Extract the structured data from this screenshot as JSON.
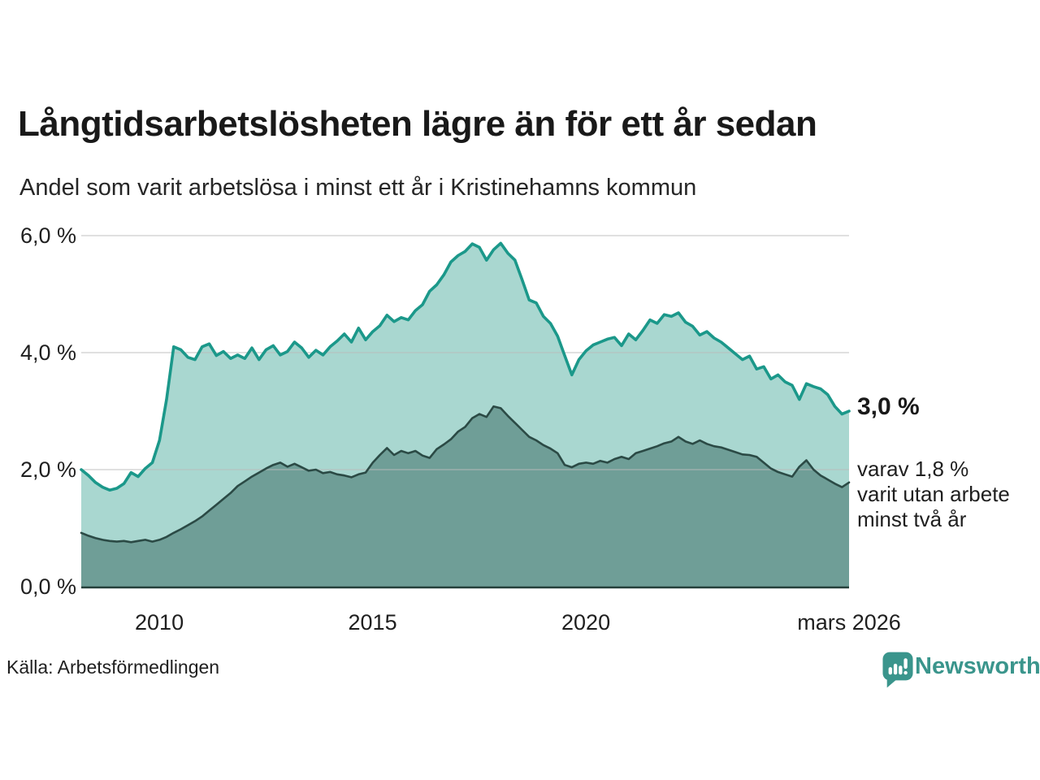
{
  "header": {
    "title": "Långtidsarbetslösheten lägre än för ett år sedan",
    "subtitle": "Andel som varit arbetslösa i minst ett år i Kristinehamns kommun"
  },
  "footer": {
    "source": "Källa: Arbetsförmedlingen",
    "brand": "Newsworthy"
  },
  "colors": {
    "series1_stroke": "#1b988a",
    "series1_fill": "#a9d7d0",
    "series2_stroke": "#2b4a45",
    "series2_fill": "#6f9e97",
    "grid": "#bdbdbd",
    "baseline": "#25403b",
    "brand_teal": "#3a958c",
    "text_dark": "#1f1f1f"
  },
  "chart_data": {
    "type": "area",
    "title": "Långtidsarbetslösheten lägre än för ett år sedan",
    "subtitle": "Andel som varit arbetslösa i minst ett år i Kristinehamns kommun",
    "x_start": 2008.17,
    "x_end": 2026.17,
    "x_unit": "year (uniform spacing, Feb 2008 – Mar 2026)",
    "ylim": [
      0,
      6
    ],
    "grid": "horizontal",
    "legend": "none",
    "y_ticks": [
      {
        "value": 6,
        "label": "6,0 %"
      },
      {
        "value": 4,
        "label": "4,0 %"
      },
      {
        "value": 2,
        "label": "2,0 %"
      },
      {
        "value": 0,
        "label": "0,0 %"
      }
    ],
    "x_ticks": [
      {
        "value": 2010,
        "label": "2010"
      },
      {
        "value": 2015,
        "label": "2015"
      },
      {
        "value": 2020,
        "label": "2020"
      },
      {
        "value": 2026.17,
        "label": "mars 2026"
      }
    ],
    "series": [
      {
        "name": "Arbetslösa minst ett år",
        "values": [
          2.0,
          1.9,
          1.78,
          1.7,
          1.65,
          1.68,
          1.76,
          1.95,
          1.88,
          2.02,
          2.12,
          2.5,
          3.2,
          4.1,
          4.05,
          3.92,
          3.88,
          4.1,
          4.15,
          3.95,
          4.02,
          3.9,
          3.96,
          3.9,
          4.08,
          3.88,
          4.05,
          4.12,
          3.96,
          4.02,
          4.18,
          4.08,
          3.92,
          4.04,
          3.96,
          4.1,
          4.2,
          4.32,
          4.18,
          4.42,
          4.22,
          4.36,
          4.46,
          4.64,
          4.53,
          4.6,
          4.56,
          4.72,
          4.82,
          5.05,
          5.16,
          5.33,
          5.55,
          5.66,
          5.73,
          5.86,
          5.8,
          5.58,
          5.76,
          5.87,
          5.7,
          5.58,
          5.25,
          4.9,
          4.85,
          4.62,
          4.5,
          4.28,
          3.95,
          3.62,
          3.88,
          4.03,
          4.13,
          4.18,
          4.23,
          4.26,
          4.12,
          4.32,
          4.22,
          4.38,
          4.56,
          4.5,
          4.65,
          4.62,
          4.68,
          4.52,
          4.45,
          4.3,
          4.36,
          4.25,
          4.18,
          4.08,
          3.98,
          3.88,
          3.94,
          3.72,
          3.76,
          3.55,
          3.62,
          3.5,
          3.44,
          3.2,
          3.47,
          3.42,
          3.38,
          3.28,
          3.08,
          2.95,
          3.0
        ]
      },
      {
        "name": "Varav utan arbete minst två år",
        "values": [
          0.92,
          0.87,
          0.83,
          0.8,
          0.78,
          0.77,
          0.78,
          0.76,
          0.78,
          0.8,
          0.77,
          0.8,
          0.85,
          0.92,
          0.98,
          1.05,
          1.12,
          1.2,
          1.3,
          1.4,
          1.5,
          1.6,
          1.72,
          1.8,
          1.88,
          1.95,
          2.02,
          2.08,
          2.12,
          2.05,
          2.1,
          2.04,
          1.98,
          2.0,
          1.94,
          1.96,
          1.92,
          1.9,
          1.87,
          1.92,
          1.95,
          2.12,
          2.25,
          2.37,
          2.25,
          2.32,
          2.28,
          2.32,
          2.24,
          2.2,
          2.35,
          2.43,
          2.52,
          2.65,
          2.73,
          2.88,
          2.95,
          2.9,
          3.08,
          3.05,
          2.92,
          2.8,
          2.68,
          2.56,
          2.5,
          2.42,
          2.36,
          2.28,
          2.08,
          2.04,
          2.1,
          2.12,
          2.1,
          2.15,
          2.12,
          2.18,
          2.22,
          2.18,
          2.28,
          2.32,
          2.36,
          2.4,
          2.45,
          2.48,
          2.56,
          2.48,
          2.44,
          2.5,
          2.44,
          2.4,
          2.38,
          2.34,
          2.3,
          2.26,
          2.25,
          2.22,
          2.12,
          2.02,
          1.96,
          1.92,
          1.88,
          2.05,
          2.16,
          2.0,
          1.9,
          1.83,
          1.76,
          1.7,
          1.78
        ]
      }
    ],
    "annotations": {
      "end_value_label": "3,0 %",
      "end_value": 3.0,
      "note_lines": [
        "varav 1,8 %",
        "varit utan arbete",
        "minst två år"
      ],
      "note_value": 1.8
    }
  }
}
